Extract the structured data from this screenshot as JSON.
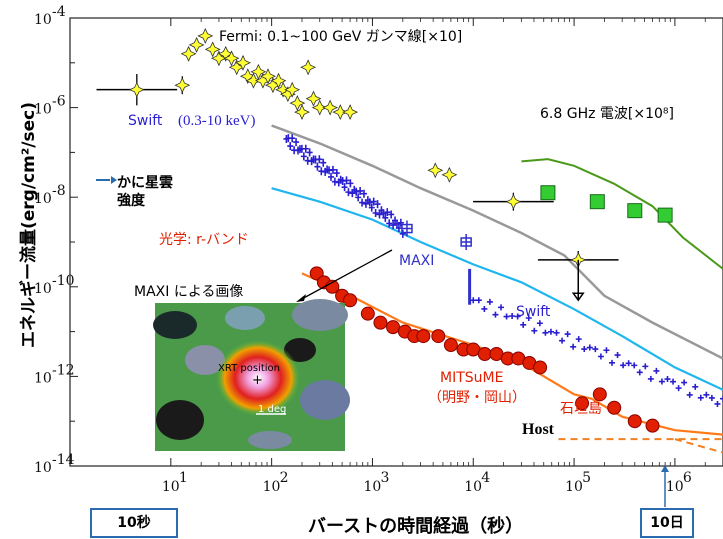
{
  "chart_data": {
    "type": "scatter",
    "xscale": "log",
    "yscale": "log",
    "xlim": [
      1,
      3000000
    ],
    "ylim": [
      1e-14,
      0.0001
    ],
    "xlabel": "バーストの時間経過（秒）",
    "ylabel": "エネルギー流量(erg/cm²/sec)",
    "x_ticks": [
      {
        "pow": 1,
        "label": "10",
        "exp": "1"
      },
      {
        "pow": 2,
        "label": "10",
        "exp": "2"
      },
      {
        "pow": 3,
        "label": "10",
        "exp": "3"
      },
      {
        "pow": 4,
        "label": "10",
        "exp": "4"
      },
      {
        "pow": 5,
        "label": "10",
        "exp": "5"
      },
      {
        "pow": 6,
        "label": "10",
        "exp": "6"
      }
    ],
    "y_ticks": [
      {
        "pow": -4,
        "label": "10",
        "exp": "-4"
      },
      {
        "pow": -6,
        "label": "10",
        "exp": "-6"
      },
      {
        "pow": -8,
        "label": "10",
        "exp": "-8"
      },
      {
        "pow": -10,
        "label": "10",
        "exp": "-10"
      },
      {
        "pow": -12,
        "label": "10",
        "exp": "-12"
      },
      {
        "pow": -14,
        "label": "10",
        "exp": "-14"
      }
    ],
    "fermi_points": [
      [
        4.6,
        -5.6,
        0.4,
        0.35
      ],
      [
        13,
        -5.5,
        0,
        0.2
      ],
      [
        15,
        -4.8,
        0,
        0.15
      ],
      [
        18,
        -4.6,
        0,
        0.15
      ],
      [
        22,
        -4.4,
        0,
        0.15
      ],
      [
        26,
        -4.7,
        0,
        0.15
      ],
      [
        30,
        -4.9,
        0,
        0.15
      ],
      [
        35,
        -4.8,
        0,
        0.15
      ],
      [
        40,
        -4.9,
        0,
        0.15
      ],
      [
        45,
        -5.1,
        0,
        0.15
      ],
      [
        52,
        -5.0,
        0,
        0.15
      ],
      [
        58,
        -5.3,
        0,
        0.15
      ],
      [
        66,
        -5.4,
        0,
        0.15
      ],
      [
        74,
        -5.2,
        0,
        0.15
      ],
      [
        82,
        -5.4,
        0,
        0.15
      ],
      [
        92,
        -5.3,
        0,
        0.15
      ],
      [
        103,
        -5.5,
        0,
        0.15
      ],
      [
        117,
        -5.4,
        0,
        0.15
      ],
      [
        130,
        -5.6,
        0,
        0.15
      ],
      [
        145,
        -5.7,
        0,
        0.15
      ],
      [
        160,
        -5.6,
        0,
        0.15
      ],
      [
        180,
        -5.9,
        0,
        0.15
      ],
      [
        200,
        -6.1,
        0,
        0.15
      ],
      [
        230,
        -5.1,
        0,
        0.15
      ],
      [
        260,
        -5.8,
        0,
        0.15
      ],
      [
        300,
        -6.0,
        0,
        0.15
      ],
      [
        380,
        -6.0,
        0,
        0.15
      ],
      [
        480,
        -6.1,
        0,
        0.15
      ],
      [
        600,
        -6.1,
        0,
        0.15
      ],
      [
        4200,
        -7.4,
        0,
        0.15
      ],
      [
        5800,
        -7.5,
        0,
        0.15
      ],
      [
        25000,
        -8.1,
        0.4,
        0.2
      ],
      [
        110000,
        -9.4,
        0.4,
        0.2
      ]
    ],
    "fermi_upper_limit": [
      110000,
      -9.4,
      -10.3
    ],
    "radio_points": [
      [
        55000,
        -7.9
      ],
      [
        170000,
        -8.1
      ],
      [
        400000,
        -8.3
      ],
      [
        800000,
        -8.4
      ]
    ],
    "radio_curve": [
      [
        30000,
        -7.2
      ],
      [
        55000,
        -7.15
      ],
      [
        100000,
        -7.3
      ],
      [
        250000,
        -7.7
      ],
      [
        600000,
        -8.2
      ],
      [
        1200000,
        -8.9
      ],
      [
        3000000,
        -9.6
      ]
    ],
    "swift_xrt_band": {
      "from": [
        140,
        -6.7
      ],
      "to": [
        2000,
        -8.7
      ]
    },
    "swift_late": {
      "from": [
        10000,
        -10.3
      ],
      "to": [
        3000000,
        -12.6
      ]
    },
    "maxi_points": [
      [
        2200,
        -8.7,
        0.1,
        0.15
      ],
      [
        8500,
        -9.0,
        0.15,
        0.15
      ]
    ],
    "maxi_bar": [
      9200,
      -9.6,
      -10.4
    ],
    "grey_curve": [
      [
        100,
        -6.4
      ],
      [
        300,
        -6.8
      ],
      [
        1000,
        -7.3
      ],
      [
        3000,
        -7.8
      ],
      [
        10000,
        -8.3
      ],
      [
        30000,
        -8.8
      ],
      [
        80000,
        -9.3
      ],
      [
        200000,
        -10.2
      ],
      [
        600000,
        -10.8
      ],
      [
        3000000,
        -11.6
      ]
    ],
    "cyan_curve": [
      [
        100,
        -7.8
      ],
      [
        300,
        -8.1
      ],
      [
        1000,
        -8.5
      ],
      [
        3000,
        -9.0
      ],
      [
        10000,
        -9.5
      ],
      [
        30000,
        -9.9
      ],
      [
        100000,
        -10.5
      ],
      [
        300000,
        -11.1
      ],
      [
        1000000,
        -11.8
      ],
      [
        3000000,
        -12.3
      ]
    ],
    "optical_curve": [
      [
        200,
        -9.7
      ],
      [
        500,
        -10.1
      ],
      [
        2000,
        -10.8
      ],
      [
        10000,
        -11.3
      ],
      [
        30000,
        -11.7
      ],
      [
        100000,
        -12.4
      ],
      [
        150000,
        -12.5
      ],
      [
        300000,
        -12.9
      ],
      [
        1000000,
        -13.2
      ],
      [
        3000000,
        -13.3
      ]
    ],
    "optical_points": [
      [
        280,
        -9.7
      ],
      [
        330,
        -9.9
      ],
      [
        400,
        -10.0
      ],
      [
        500,
        -10.2
      ],
      [
        600,
        -10.3
      ],
      [
        900,
        -10.6
      ],
      [
        1200,
        -10.8
      ],
      [
        1600,
        -10.9
      ],
      [
        2100,
        -11.0
      ],
      [
        2600,
        -11.1
      ],
      [
        3200,
        -11.1
      ],
      [
        4500,
        -11.1
      ],
      [
        6000,
        -11.3
      ],
      [
        8000,
        -11.4
      ],
      [
        10000,
        -11.4
      ],
      [
        13000,
        -11.5
      ],
      [
        17000,
        -11.5
      ],
      [
        22000,
        -11.6
      ],
      [
        28000,
        -11.6
      ],
      [
        36000,
        -11.7
      ],
      [
        46000,
        -11.8
      ],
      [
        120000,
        -12.6
      ],
      [
        180000,
        -12.4
      ],
      [
        250000,
        -12.7
      ],
      [
        400000,
        -13.0
      ],
      [
        600000,
        -13.1
      ]
    ],
    "host_line": {
      "from": [
        70000,
        -13.4
      ],
      "to": [
        3000000,
        -13.4
      ]
    },
    "host_line2": {
      "from": [
        1000000,
        -13.4
      ],
      "to": [
        3000000,
        -13.7
      ]
    }
  },
  "labels": {
    "fermi": "Fermi: 0.1~100 GeV ガンマ線[×10]",
    "radio": "6.8 GHz 電波[×10⁸]",
    "swift_early": "Swift",
    "swift_range": "(0.3-10 keV)",
    "crab_line1": "かに星雲",
    "crab_line2": "強度",
    "optical": "光学: r-バンド",
    "maxi_image": "MAXI による画像",
    "maxi": "MAXI",
    "swift_late": "Swift",
    "mitsume_line1": "MITSuME",
    "mitsume_line2": "（明野・岡山）",
    "ishigaki": "石垣島",
    "host": "Host",
    "xrt_position": "XRT position",
    "scale": "1 deg",
    "box_10s": "10秒",
    "box_10d": "10日"
  },
  "colors": {
    "swift": "#2a1fd0",
    "fermi_fill": "#ffff33",
    "optical": "#e02000",
    "optical_curve": "#ff7a1a",
    "radio_curve": "#4a9a1a",
    "radio_fill": "#33cc33",
    "cyan": "#1fb6ee",
    "grey": "#999999",
    "maxi": "#3030cc",
    "box_border": "#2b6cb0"
  }
}
